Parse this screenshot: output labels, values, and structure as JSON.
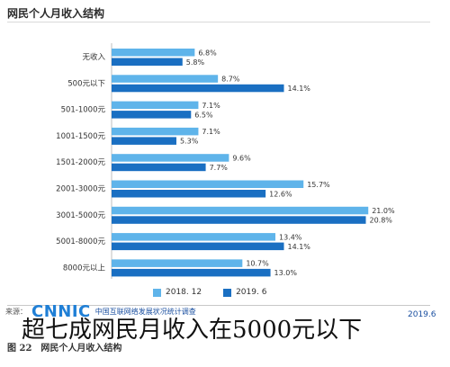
{
  "chart_data": {
    "type": "bar",
    "orientation": "horizontal",
    "title": "网民个人月收入结构",
    "categories": [
      "无收入",
      "500元以下",
      "501-1000元",
      "1001-1500元",
      "1501-2000元",
      "2001-3000元",
      "3001-5000元",
      "5001-8000元",
      "8000元以上"
    ],
    "series": [
      {
        "name": "2018. 12",
        "color": "#5fb4ea",
        "values": [
          6.8,
          8.7,
          7.1,
          7.1,
          9.6,
          15.7,
          21.0,
          13.4,
          10.7
        ],
        "labels": [
          "6.8%",
          "8.7%",
          "7.1%",
          "7.1%",
          "9.6%",
          "15.7%",
          "21.0%",
          "13.4%",
          "10.7%"
        ]
      },
      {
        "name": "2019. 6",
        "color": "#1a6fc2",
        "values": [
          5.8,
          14.1,
          6.5,
          5.3,
          7.7,
          12.6,
          20.8,
          14.1,
          13.0
        ],
        "labels": [
          "5.8%",
          "14.1%",
          "6.5%",
          "5.3%",
          "7.7%",
          "12.6%",
          "20.8%",
          "14.1%",
          "13.0%"
        ]
      }
    ],
    "xlim": [
      0,
      21.5
    ],
    "grid": false,
    "legend": "bottom"
  },
  "source": {
    "prefix": "来源：",
    "logo": "CNNIC",
    "desc": "中国互联网络发展状况统计调查",
    "year": "2019.6"
  },
  "headline": "超七成网民月收入在5000元以下",
  "caption": "图 22　网民个人月收入结构"
}
